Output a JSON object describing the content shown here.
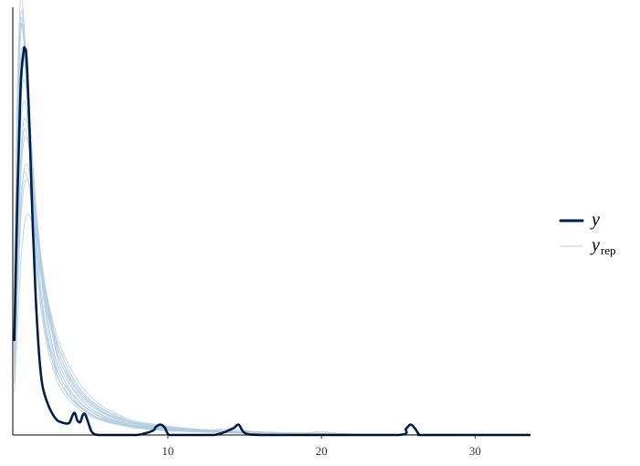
{
  "chart_data": {
    "type": "line",
    "title": "",
    "xlabel": "",
    "ylabel": "",
    "xlim": [
      -0.1,
      33.6
    ],
    "ylim": [
      0,
      0.82
    ],
    "x_ticks": [
      10,
      20,
      30
    ],
    "x_tick_labels": [
      "10",
      "20",
      "30"
    ],
    "grid": false,
    "legend_position": "right",
    "colors": {
      "y": "#011f4b",
      "yrep": "#b3cde0"
    },
    "legend": [
      {
        "key": "y",
        "label": "y",
        "sub": ""
      },
      {
        "key": "yrep",
        "label": "y",
        "sub": "rep"
      }
    ],
    "series": [
      {
        "name": "y",
        "x": [
          0.0,
          0.2,
          0.4,
          0.6,
          0.7,
          0.8,
          1.0,
          1.2,
          1.4,
          1.6,
          1.8,
          2.0,
          2.2,
          2.4,
          2.6,
          2.8,
          3.0,
          3.2,
          3.4,
          3.6,
          3.8,
          3.95,
          4.1,
          4.3,
          4.45,
          4.6,
          4.8,
          5.0,
          5.2,
          5.5,
          6.0,
          7.0,
          8.0,
          9.0,
          9.2,
          9.5,
          9.8,
          10.1,
          11.0,
          13.0,
          14.2,
          14.6,
          15.0,
          16.0,
          20.0,
          25.0,
          25.5,
          25.8,
          26.1,
          26.4,
          27.0,
          33.6
        ],
        "values": [
          0.18,
          0.45,
          0.66,
          0.735,
          0.74,
          0.72,
          0.58,
          0.4,
          0.26,
          0.16,
          0.1,
          0.075,
          0.058,
          0.045,
          0.035,
          0.028,
          0.025,
          0.023,
          0.022,
          0.024,
          0.038,
          0.042,
          0.028,
          0.025,
          0.038,
          0.04,
          0.025,
          0.008,
          0.002,
          0.0,
          0.0,
          0.0,
          0.0,
          0.008,
          0.015,
          0.02,
          0.014,
          0.0,
          0.0,
          0.0,
          0.012,
          0.02,
          0.004,
          0.0,
          0.0,
          0.0,
          0.012,
          0.02,
          0.012,
          0.0,
          0.0,
          0.0
        ]
      },
      {
        "name": "yrep",
        "x": [
          0.0,
          0.2,
          0.4,
          0.6,
          0.8,
          1.0,
          1.2,
          1.5,
          2.0,
          2.5,
          3.0,
          4.0,
          5.0,
          6.0,
          7.0,
          8.0,
          10.0,
          12.0,
          14.0,
          16.0,
          18.0,
          20.0,
          22.0,
          25.0,
          33.6
        ],
        "values": [
          0.28,
          0.62,
          0.78,
          0.76,
          0.66,
          0.55,
          0.44,
          0.32,
          0.21,
          0.15,
          0.11,
          0.07,
          0.045,
          0.03,
          0.022,
          0.016,
          0.01,
          0.007,
          0.005,
          0.004,
          0.003,
          0.002,
          0.002,
          0.001,
          0.0
        ]
      },
      {
        "name": "yrep",
        "x": [
          0.0,
          0.2,
          0.4,
          0.6,
          0.8,
          1.0,
          1.2,
          1.5,
          2.0,
          2.5,
          3.0,
          4.0,
          5.0,
          6.0,
          7.0,
          8.0,
          10.0,
          12.0,
          14.0,
          16.0,
          18.0,
          20.0,
          22.0,
          25.0,
          33.6
        ],
        "values": [
          0.22,
          0.55,
          0.72,
          0.74,
          0.69,
          0.6,
          0.5,
          0.38,
          0.24,
          0.16,
          0.11,
          0.065,
          0.04,
          0.028,
          0.02,
          0.015,
          0.01,
          0.007,
          0.012,
          0.005,
          0.003,
          0.002,
          0.001,
          0.001,
          0.0
        ]
      },
      {
        "name": "yrep",
        "x": [
          0.0,
          0.2,
          0.4,
          0.6,
          0.8,
          1.0,
          1.2,
          1.5,
          2.0,
          2.5,
          3.0,
          4.0,
          5.0,
          6.0,
          7.0,
          8.0,
          10.0,
          12.0,
          14.0,
          16.0,
          18.0,
          20.0,
          22.0,
          25.0,
          33.6
        ],
        "values": [
          0.16,
          0.4,
          0.58,
          0.64,
          0.62,
          0.56,
          0.48,
          0.38,
          0.27,
          0.19,
          0.13,
          0.08,
          0.05,
          0.035,
          0.025,
          0.018,
          0.012,
          0.008,
          0.006,
          0.004,
          0.003,
          0.002,
          0.002,
          0.001,
          0.0
        ]
      },
      {
        "name": "yrep",
        "x": [
          0.0,
          0.2,
          0.4,
          0.6,
          0.8,
          1.0,
          1.2,
          1.5,
          2.0,
          2.5,
          3.0,
          4.0,
          5.0,
          6.0,
          7.0,
          8.0,
          10.0,
          12.0,
          14.0,
          16.0,
          18.0,
          20.0,
          22.0,
          25.0,
          33.6
        ],
        "values": [
          0.12,
          0.3,
          0.44,
          0.5,
          0.5,
          0.47,
          0.42,
          0.35,
          0.26,
          0.19,
          0.14,
          0.09,
          0.06,
          0.04,
          0.03,
          0.022,
          0.014,
          0.01,
          0.007,
          0.005,
          0.004,
          0.003,
          0.002,
          0.001,
          0.0
        ]
      },
      {
        "name": "yrep",
        "x": [
          0.0,
          0.2,
          0.4,
          0.6,
          0.8,
          1.0,
          1.2,
          1.5,
          2.0,
          2.5,
          3.0,
          4.0,
          5.0,
          6.0,
          7.0,
          8.0,
          10.0,
          12.0,
          14.0,
          16.0,
          18.0,
          20.0,
          22.0,
          25.0,
          33.6
        ],
        "values": [
          0.3,
          0.66,
          0.84,
          0.8,
          0.68,
          0.55,
          0.42,
          0.3,
          0.19,
          0.13,
          0.09,
          0.055,
          0.035,
          0.025,
          0.018,
          0.013,
          0.008,
          0.006,
          0.004,
          0.003,
          0.002,
          0.002,
          0.001,
          0.001,
          0.0
        ]
      },
      {
        "name": "yrep",
        "x": [
          0.0,
          0.2,
          0.4,
          0.6,
          0.8,
          1.0,
          1.2,
          1.5,
          2.0,
          2.5,
          3.0,
          4.0,
          5.0,
          6.0,
          7.0,
          8.0,
          10.0,
          12.0,
          14.0,
          16.0,
          18.0,
          20.0,
          22.0,
          25.0,
          33.6
        ],
        "values": [
          0.14,
          0.34,
          0.5,
          0.58,
          0.58,
          0.54,
          0.47,
          0.37,
          0.27,
          0.2,
          0.15,
          0.095,
          0.062,
          0.042,
          0.03,
          0.021,
          0.013,
          0.009,
          0.006,
          0.005,
          0.004,
          0.003,
          0.002,
          0.001,
          0.0
        ]
      },
      {
        "name": "yrep",
        "x": [
          0.0,
          0.2,
          0.4,
          0.6,
          0.8,
          1.0,
          1.2,
          1.5,
          2.0,
          2.5,
          3.0,
          4.0,
          5.0,
          6.0,
          7.0,
          8.0,
          10.0,
          12.0,
          14.0,
          16.0,
          18.0,
          20.0,
          22.0,
          25.0,
          33.6
        ],
        "values": [
          0.26,
          0.58,
          0.76,
          0.78,
          0.7,
          0.6,
          0.48,
          0.35,
          0.22,
          0.15,
          0.1,
          0.06,
          0.038,
          0.026,
          0.019,
          0.014,
          0.009,
          0.006,
          0.005,
          0.003,
          0.002,
          0.006,
          0.001,
          0.001,
          0.0
        ]
      },
      {
        "name": "yrep",
        "x": [
          0.0,
          0.2,
          0.4,
          0.6,
          0.8,
          1.0,
          1.2,
          1.5,
          2.0,
          2.5,
          3.0,
          4.0,
          5.0,
          6.0,
          7.0,
          8.0,
          10.0,
          12.0,
          14.0,
          16.0,
          18.0,
          20.0,
          22.0,
          25.0,
          33.6
        ],
        "values": [
          0.1,
          0.26,
          0.4,
          0.47,
          0.49,
          0.48,
          0.44,
          0.37,
          0.28,
          0.21,
          0.16,
          0.1,
          0.065,
          0.045,
          0.032,
          0.023,
          0.015,
          0.01,
          0.007,
          0.005,
          0.004,
          0.003,
          0.002,
          0.001,
          0.0
        ]
      },
      {
        "name": "yrep",
        "x": [
          0.0,
          0.2,
          0.4,
          0.6,
          0.8,
          1.0,
          1.2,
          1.5,
          2.0,
          2.5,
          3.0,
          4.0,
          5.0,
          6.0,
          7.0,
          8.0,
          10.0,
          12.0,
          14.0,
          16.0,
          18.0,
          20.0,
          22.0,
          25.0,
          33.6
        ],
        "values": [
          0.2,
          0.5,
          0.68,
          0.72,
          0.68,
          0.61,
          0.52,
          0.4,
          0.26,
          0.17,
          0.12,
          0.07,
          0.045,
          0.03,
          0.022,
          0.016,
          0.01,
          0.007,
          0.005,
          0.004,
          0.003,
          0.002,
          0.001,
          0.001,
          0.001
        ]
      },
      {
        "name": "yrep",
        "x": [
          0.0,
          0.2,
          0.4,
          0.6,
          0.8,
          1.0,
          1.2,
          1.5,
          2.0,
          2.5,
          3.0,
          4.0,
          5.0,
          6.0,
          7.0,
          8.0,
          10.0,
          12.0,
          14.0,
          16.0,
          18.0,
          20.0,
          22.0,
          25.0,
          33.6
        ],
        "values": [
          0.08,
          0.2,
          0.32,
          0.39,
          0.42,
          0.42,
          0.4,
          0.35,
          0.28,
          0.22,
          0.17,
          0.11,
          0.072,
          0.05,
          0.036,
          0.026,
          0.017,
          0.011,
          0.008,
          0.006,
          0.004,
          0.003,
          0.002,
          0.001,
          0.0
        ]
      },
      {
        "name": "yrep",
        "x": [
          0.0,
          0.2,
          0.4,
          0.6,
          0.8,
          1.0,
          1.2,
          1.5,
          2.0,
          2.5,
          3.0,
          4.0,
          5.0,
          6.0,
          7.0,
          8.0,
          10.0,
          12.0,
          14.0,
          16.0,
          18.0,
          20.0,
          22.0,
          25.0,
          33.6
        ],
        "values": [
          0.24,
          0.6,
          0.8,
          0.79,
          0.7,
          0.58,
          0.46,
          0.33,
          0.21,
          0.14,
          0.1,
          0.06,
          0.04,
          0.027,
          0.02,
          0.014,
          0.009,
          0.006,
          0.004,
          0.003,
          0.002,
          0.002,
          0.001,
          0.001,
          0.0
        ]
      },
      {
        "name": "yrep",
        "x": [
          0.0,
          0.2,
          0.4,
          0.6,
          0.8,
          1.0,
          1.2,
          1.5,
          2.0,
          2.5,
          3.0,
          4.0,
          5.0,
          6.0,
          7.0,
          8.0,
          10.0,
          12.0,
          14.0,
          16.0,
          18.0,
          20.0,
          22.0,
          25.0,
          33.6
        ],
        "values": [
          0.18,
          0.44,
          0.62,
          0.68,
          0.66,
          0.6,
          0.52,
          0.41,
          0.28,
          0.19,
          0.13,
          0.08,
          0.05,
          0.034,
          0.024,
          0.018,
          0.011,
          0.008,
          0.005,
          0.004,
          0.003,
          0.002,
          0.001,
          0.001,
          0.0
        ]
      },
      {
        "name": "yrep",
        "x": [
          0.0,
          0.2,
          0.4,
          0.6,
          0.8,
          1.0,
          1.2,
          1.5,
          2.0,
          2.5,
          3.0,
          4.0,
          5.0,
          6.0,
          7.0,
          8.0,
          10.0,
          12.0,
          14.0,
          16.0,
          18.0,
          20.0,
          22.0,
          25.0,
          33.6
        ],
        "values": [
          0.13,
          0.32,
          0.48,
          0.56,
          0.57,
          0.54,
          0.48,
          0.39,
          0.29,
          0.21,
          0.15,
          0.09,
          0.058,
          0.04,
          0.028,
          0.02,
          0.013,
          0.009,
          0.006,
          0.005,
          0.004,
          0.003,
          0.002,
          0.001,
          0.0
        ]
      },
      {
        "name": "yrep",
        "x": [
          0.0,
          0.2,
          0.4,
          0.6,
          0.8,
          1.0,
          1.2,
          1.5,
          2.0,
          2.5,
          3.0,
          4.0,
          5.0,
          6.0,
          7.0,
          8.0,
          10.0,
          12.0,
          14.0,
          16.0,
          18.0,
          20.0,
          22.0,
          25.0,
          33.6
        ],
        "values": [
          0.27,
          0.62,
          0.79,
          0.77,
          0.67,
          0.56,
          0.44,
          0.32,
          0.2,
          0.14,
          0.1,
          0.062,
          0.04,
          0.028,
          0.02,
          0.015,
          0.009,
          0.006,
          0.004,
          0.003,
          0.002,
          0.002,
          0.001,
          0.001,
          0.002
        ]
      },
      {
        "name": "yrep",
        "x": [
          0.0,
          0.2,
          0.4,
          0.6,
          0.8,
          1.0,
          1.2,
          1.5,
          2.0,
          2.5,
          3.0,
          4.0,
          5.0,
          6.0,
          7.0,
          8.0,
          10.0,
          12.0,
          14.0,
          16.0,
          18.0,
          20.0,
          22.0,
          25.0,
          33.6
        ],
        "values": [
          0.11,
          0.28,
          0.42,
          0.5,
          0.52,
          0.5,
          0.46,
          0.38,
          0.28,
          0.21,
          0.16,
          0.1,
          0.066,
          0.046,
          0.033,
          0.024,
          0.016,
          0.011,
          0.008,
          0.006,
          0.004,
          0.003,
          0.002,
          0.001,
          0.0
        ]
      },
      {
        "name": "yrep",
        "x": [
          0.0,
          0.2,
          0.4,
          0.6,
          0.8,
          1.0,
          1.2,
          1.5,
          2.0,
          2.5,
          3.0,
          4.0,
          5.0,
          6.0,
          7.0,
          8.0,
          10.0,
          12.0,
          14.0,
          16.0,
          18.0,
          20.0,
          22.0,
          25.0,
          33.6
        ],
        "values": [
          0.21,
          0.52,
          0.7,
          0.73,
          0.68,
          0.6,
          0.5,
          0.38,
          0.25,
          0.17,
          0.12,
          0.072,
          0.046,
          0.032,
          0.023,
          0.017,
          0.011,
          0.007,
          0.005,
          0.004,
          0.003,
          0.002,
          0.001,
          0.001,
          0.0
        ]
      },
      {
        "name": "yrep",
        "x": [
          0.0,
          0.2,
          0.4,
          0.6,
          0.8,
          1.0,
          1.2,
          1.5,
          2.0,
          2.5,
          3.0,
          4.0,
          5.0,
          6.0,
          7.0,
          8.0,
          10.0,
          12.0,
          14.0,
          16.0,
          18.0,
          20.0,
          22.0,
          25.0,
          33.6
        ],
        "values": [
          0.15,
          0.36,
          0.52,
          0.6,
          0.6,
          0.56,
          0.49,
          0.39,
          0.28,
          0.2,
          0.14,
          0.085,
          0.055,
          0.038,
          0.027,
          0.02,
          0.012,
          0.008,
          0.006,
          0.004,
          0.003,
          0.002,
          0.002,
          0.001,
          0.0
        ]
      }
    ]
  }
}
